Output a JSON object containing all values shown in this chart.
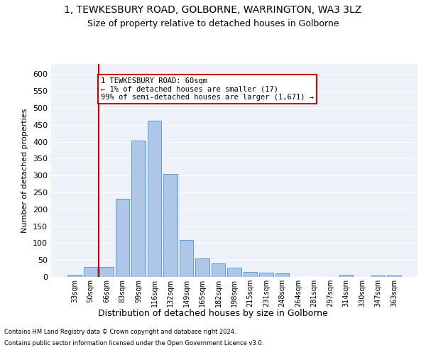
{
  "title1": "1, TEWKESBURY ROAD, GOLBORNE, WARRINGTON, WA3 3LZ",
  "title2": "Size of property relative to detached houses in Golborne",
  "xlabel": "Distribution of detached houses by size in Golborne",
  "ylabel": "Number of detached properties",
  "bar_labels": [
    "33sqm",
    "50sqm",
    "66sqm",
    "83sqm",
    "99sqm",
    "116sqm",
    "132sqm",
    "149sqm",
    "165sqm",
    "182sqm",
    "198sqm",
    "215sqm",
    "231sqm",
    "248sqm",
    "264sqm",
    "281sqm",
    "297sqm",
    "314sqm",
    "330sqm",
    "347sqm",
    "363sqm"
  ],
  "bar_values": [
    7,
    30,
    30,
    230,
    403,
    463,
    305,
    110,
    54,
    40,
    27,
    15,
    13,
    10,
    0,
    0,
    0,
    7,
    0,
    5,
    5
  ],
  "bar_color": "#aec6e8",
  "bar_edge_color": "#5b9bd5",
  "bg_color": "#eef2f8",
  "grid_color": "#ffffff",
  "property_line_x": 1.5,
  "annotation_text": "1 TEWKESBURY ROAD: 60sqm\n← 1% of detached houses are smaller (17)\n99% of semi-detached houses are larger (1,671) →",
  "annotation_box_color": "#ffffff",
  "annotation_box_edge": "#cc0000",
  "vline_color": "#cc0000",
  "footnote1": "Contains HM Land Registry data © Crown copyright and database right 2024.",
  "footnote2": "Contains public sector information licensed under the Open Government Licence v3.0.",
  "ylim": [
    0,
    630
  ],
  "yticks": [
    0,
    50,
    100,
    150,
    200,
    250,
    300,
    350,
    400,
    450,
    500,
    550,
    600
  ]
}
